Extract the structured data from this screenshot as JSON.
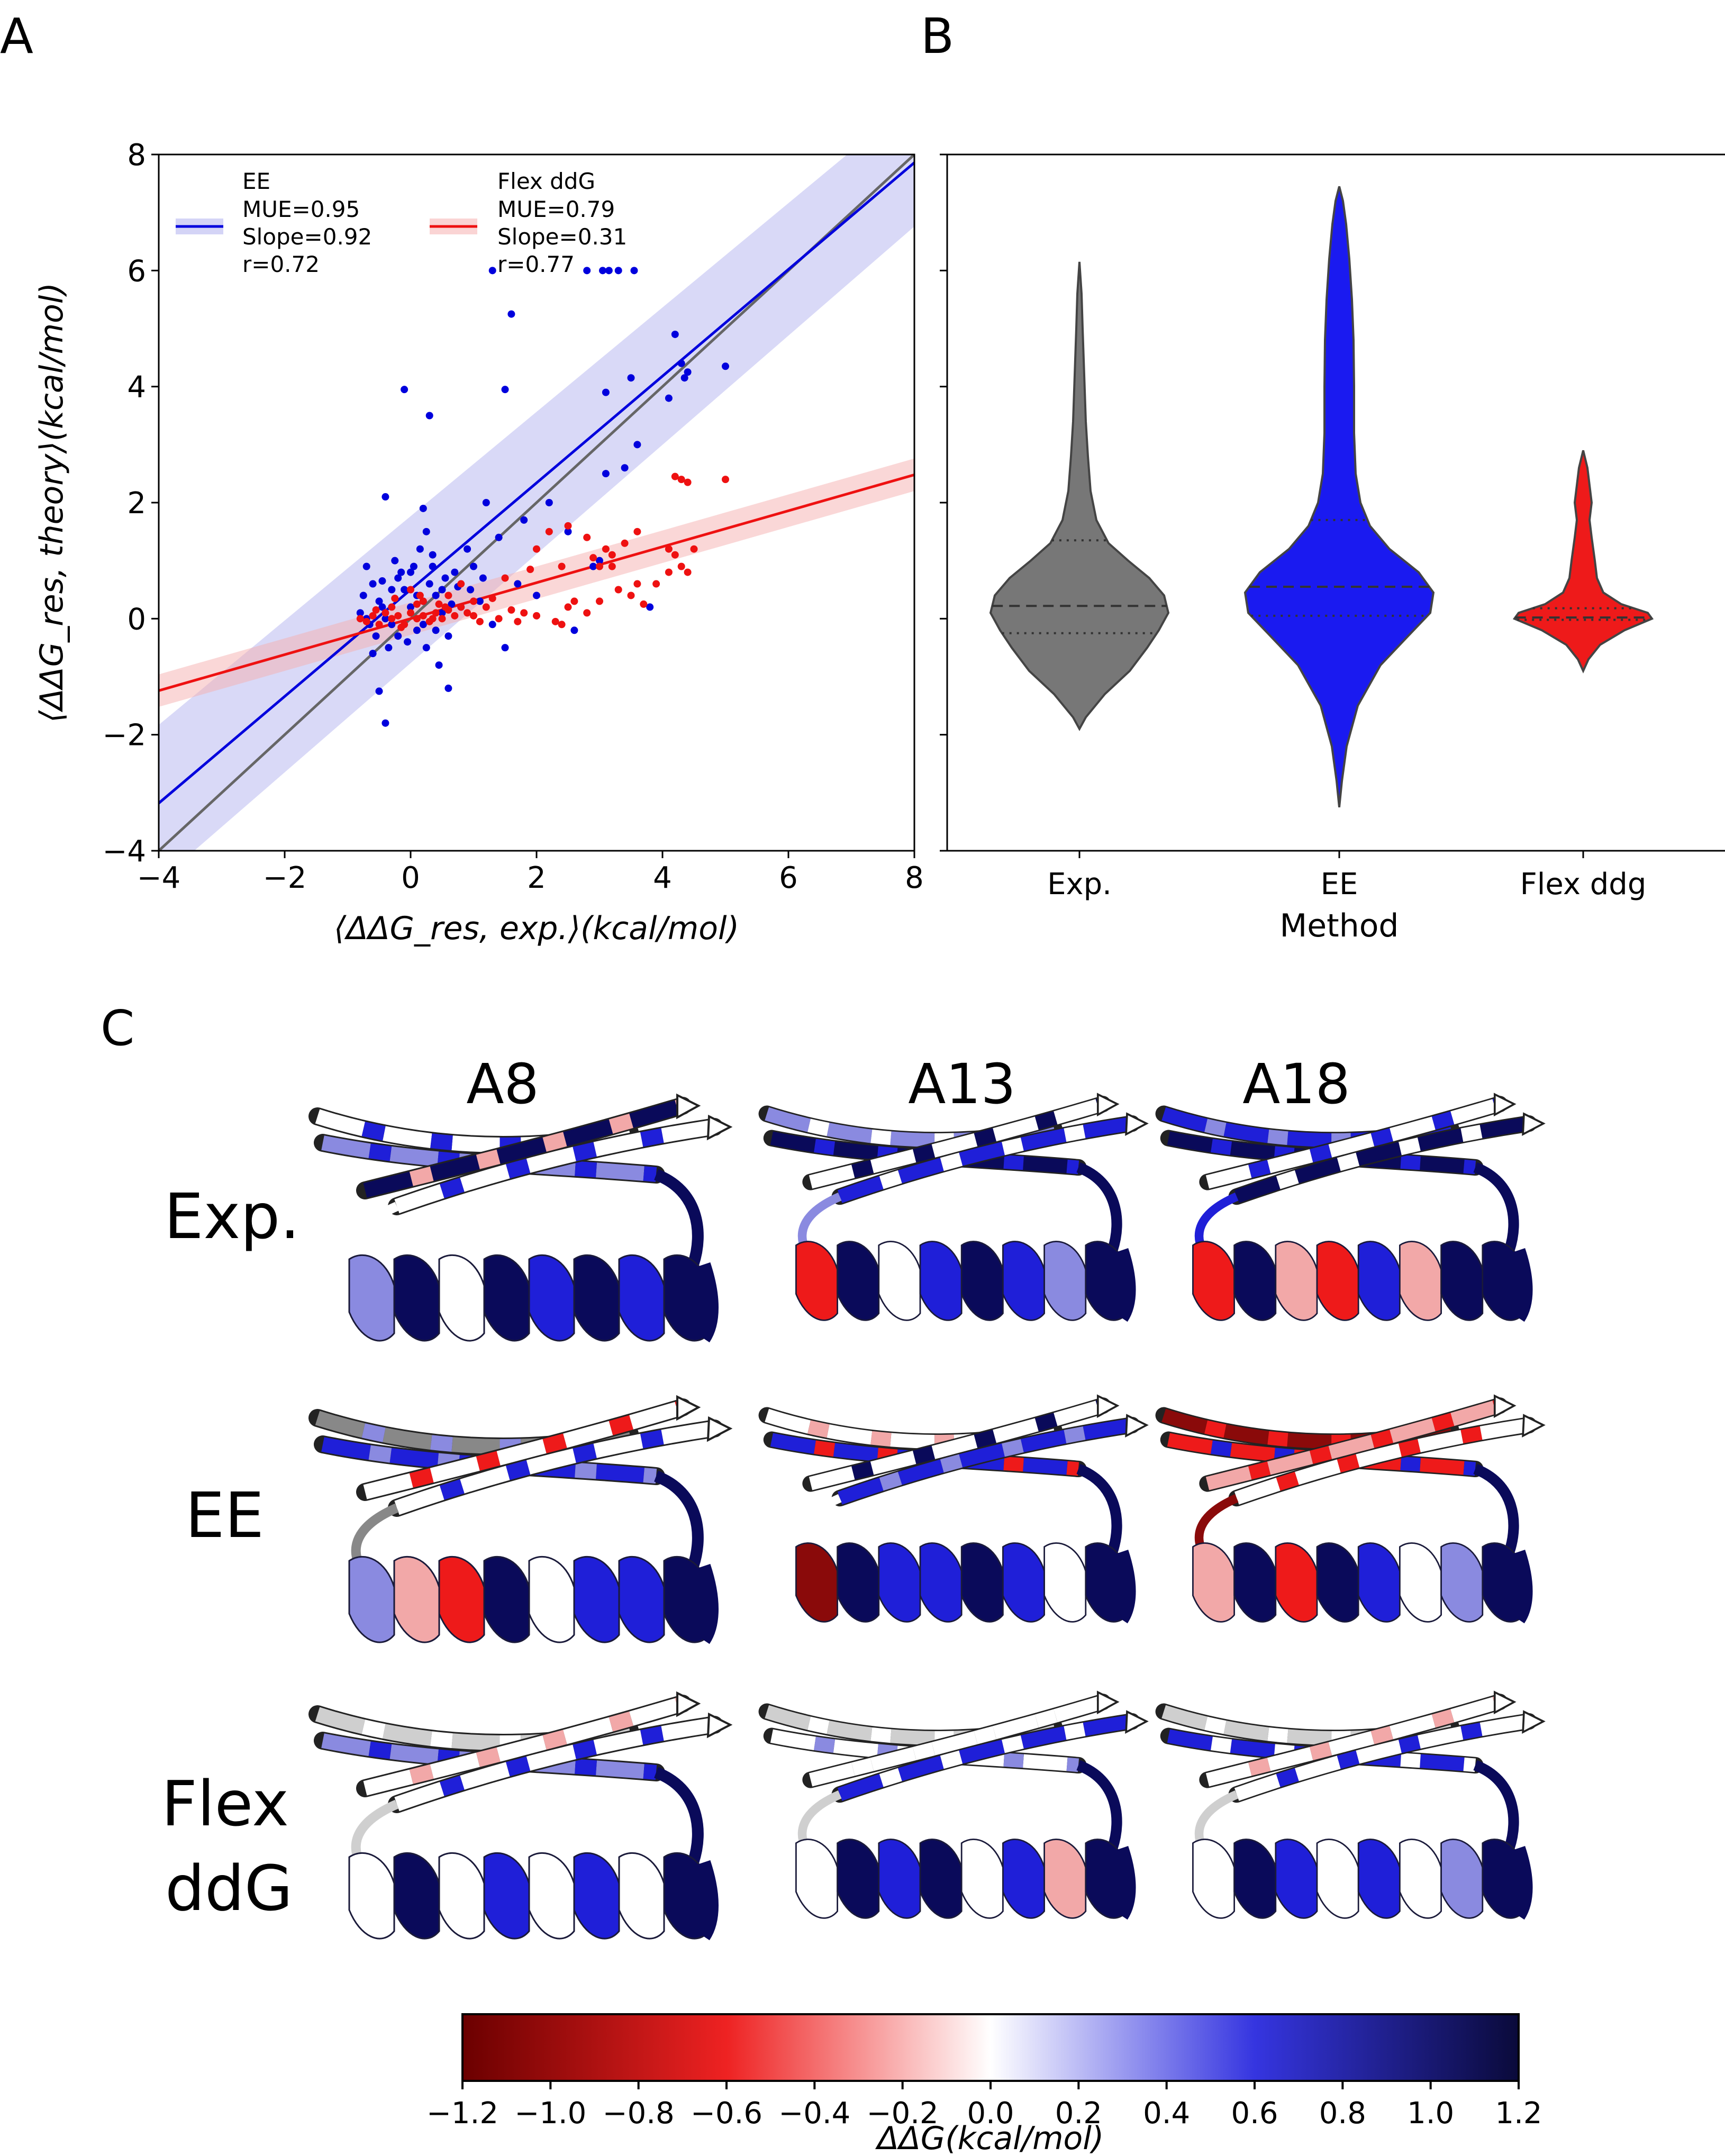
{
  "panels": {
    "a": "A",
    "b": "B",
    "c": "C"
  },
  "chart_data": [
    {
      "type": "scatter",
      "panel": "A",
      "xlabel": "⟨ΔΔG_res, exp.⟩(kcal/mol)",
      "ylabel": "⟨ΔΔG_res, theory⟩(kcal/mol)",
      "xlim": [
        -4,
        8
      ],
      "ylim": [
        -4,
        8
      ],
      "xticks": [
        "−4",
        "−2",
        "0",
        "2",
        "4",
        "6",
        "8"
      ],
      "yticks": [
        "−4",
        "−2",
        "0",
        "2",
        "4",
        "6",
        "8"
      ],
      "grid": false,
      "legend_position": "top-left",
      "reference_line": {
        "slope": 1,
        "intercept": 0,
        "color": "#666666"
      },
      "series": [
        {
          "name": "EE",
          "stats": [
            "MUE=0.95",
            "Slope=0.92",
            "r=0.72"
          ],
          "color": "#0000dd",
          "band_color": "#aaaaee",
          "fit": {
            "slope": 0.92,
            "intercept": 0.5
          },
          "points": [
            [
              -0.7,
              0.9
            ],
            [
              -0.6,
              0.6
            ],
            [
              -0.5,
              0.3
            ],
            [
              -0.4,
              0.0
            ],
            [
              -0.3,
              -0.1
            ],
            [
              -0.2,
              0.7
            ],
            [
              -0.1,
              0.5
            ],
            [
              0.0,
              0.2
            ],
            [
              0.1,
              -0.2
            ],
            [
              0.2,
              0.3
            ],
            [
              0.3,
              0.6
            ],
            [
              0.4,
              0.4
            ],
            [
              0.5,
              0.1
            ],
            [
              0.6,
              -0.3
            ],
            [
              0.7,
              0.8
            ],
            [
              -0.8,
              0.1
            ],
            [
              -0.75,
              0.4
            ],
            [
              -0.65,
              -0.1
            ],
            [
              -0.55,
              -0.3
            ],
            [
              -0.45,
              0.2
            ],
            [
              -0.35,
              -0.5
            ],
            [
              -0.25,
              1.0
            ],
            [
              -0.15,
              0.8
            ],
            [
              -0.05,
              -0.4
            ],
            [
              0.05,
              0.9
            ],
            [
              0.15,
              1.2
            ],
            [
              0.25,
              1.5
            ],
            [
              0.35,
              0.9
            ],
            [
              0.45,
              -0.8
            ],
            [
              0.55,
              0.7
            ],
            [
              -0.4,
              2.1
            ],
            [
              -0.1,
              3.95
            ],
            [
              0.3,
              3.5
            ],
            [
              0.2,
              1.9
            ],
            [
              0.6,
              -1.2
            ],
            [
              -0.5,
              -1.25
            ],
            [
              -0.4,
              -1.8
            ],
            [
              -0.6,
              -0.6
            ],
            [
              0.25,
              -0.5
            ],
            [
              0.4,
              -0.2
            ],
            [
              1.0,
              0.9
            ],
            [
              1.1,
              0.3
            ],
            [
              1.3,
              -0.1
            ],
            [
              1.5,
              -0.5
            ],
            [
              1.4,
              1.4
            ],
            [
              1.5,
              3.95
            ],
            [
              1.6,
              5.25
            ],
            [
              1.3,
              6.0
            ],
            [
              2.2,
              2.0
            ],
            [
              2.8,
              6.0
            ],
            [
              3.05,
              6.0
            ],
            [
              3.15,
              6.0
            ],
            [
              3.3,
              6.0
            ],
            [
              3.55,
              6.0
            ],
            [
              3.1,
              3.9
            ],
            [
              3.5,
              4.15
            ],
            [
              4.2,
              4.9
            ],
            [
              4.3,
              4.4
            ],
            [
              4.35,
              4.15
            ],
            [
              4.4,
              4.25
            ],
            [
              5.0,
              4.35
            ],
            [
              3.8,
              0.2
            ],
            [
              3.0,
              1.0
            ],
            [
              2.9,
              0.9
            ],
            [
              2.5,
              1.5
            ],
            [
              1.2,
              2.0
            ],
            [
              1.8,
              1.7
            ],
            [
              2.0,
              0.4
            ],
            [
              3.1,
              2.5
            ],
            [
              3.4,
              2.6
            ],
            [
              3.6,
              3.0
            ],
            [
              4.1,
              3.8
            ],
            [
              2.6,
              -0.2
            ],
            [
              1.7,
              0.6
            ],
            [
              0.9,
              1.2
            ],
            [
              0.8,
              0.2
            ],
            [
              -0.3,
              0.5
            ],
            [
              0.0,
              0.8
            ],
            [
              0.2,
              -0.1
            ],
            [
              -0.2,
              -0.3
            ],
            [
              0.1,
              0.4
            ],
            [
              0.35,
              1.1
            ],
            [
              0.5,
              0.5
            ],
            [
              -0.7,
              0.0
            ],
            [
              -0.45,
              0.65
            ],
            [
              0.65,
              0.25
            ],
            [
              0.75,
              0.55
            ],
            [
              0.95,
              0.5
            ],
            [
              1.15,
              0.7
            ]
          ]
        },
        {
          "name": "Flex ddG",
          "stats": [
            "MUE=0.79",
            "Slope=0.31",
            "r=0.77"
          ],
          "color": "#ee1111",
          "band_color": "#f5b0b0",
          "fit": {
            "slope": 0.31,
            "intercept": 0.0
          },
          "points": [
            [
              -0.8,
              0.0
            ],
            [
              -0.7,
              -0.05
            ],
            [
              -0.6,
              0.05
            ],
            [
              -0.5,
              -0.1
            ],
            [
              -0.4,
              0.1
            ],
            [
              -0.3,
              0.0
            ],
            [
              -0.2,
              0.05
            ],
            [
              -0.1,
              -0.1
            ],
            [
              0.0,
              0.1
            ],
            [
              0.1,
              0.0
            ],
            [
              0.2,
              0.05
            ],
            [
              0.3,
              -0.05
            ],
            [
              0.4,
              0.1
            ],
            [
              0.5,
              0.0
            ],
            [
              0.6,
              0.15
            ],
            [
              0.7,
              0.05
            ],
            [
              0.8,
              0.2
            ],
            [
              0.9,
              0.1
            ],
            [
              1.0,
              0.05
            ],
            [
              1.1,
              -0.05
            ],
            [
              0.0,
              0.5
            ],
            [
              0.2,
              0.3
            ],
            [
              -0.3,
              0.2
            ],
            [
              0.1,
              0.25
            ],
            [
              0.35,
              0.0
            ],
            [
              -0.15,
              -0.15
            ],
            [
              0.55,
              0.2
            ],
            [
              1.2,
              0.2
            ],
            [
              1.4,
              0.0
            ],
            [
              1.6,
              0.15
            ],
            [
              1.8,
              0.1
            ],
            [
              2.0,
              0.05
            ],
            [
              2.3,
              -0.05
            ],
            [
              2.5,
              0.2
            ],
            [
              2.6,
              0.3
            ],
            [
              2.8,
              0.1
            ],
            [
              3.0,
              0.3
            ],
            [
              3.3,
              0.5
            ],
            [
              3.5,
              0.4
            ],
            [
              3.6,
              0.6
            ],
            [
              3.9,
              0.6
            ],
            [
              4.1,
              0.8
            ],
            [
              4.2,
              1.1
            ],
            [
              4.3,
              0.9
            ],
            [
              4.4,
              0.8
            ],
            [
              3.0,
              0.9
            ],
            [
              3.1,
              1.2
            ],
            [
              3.2,
              1.1
            ],
            [
              3.4,
              1.3
            ],
            [
              3.6,
              1.5
            ],
            [
              2.2,
              1.5
            ],
            [
              2.5,
              1.6
            ],
            [
              2.8,
              1.4
            ],
            [
              2.0,
              1.2
            ],
            [
              1.9,
              0.85
            ],
            [
              2.9,
              1.05
            ],
            [
              4.2,
              2.45
            ],
            [
              4.3,
              2.4
            ],
            [
              4.4,
              2.35
            ],
            [
              5.0,
              2.4
            ],
            [
              4.5,
              1.2
            ],
            [
              4.1,
              1.2
            ],
            [
              3.2,
              0.9
            ],
            [
              2.4,
              0.9
            ],
            [
              1.5,
              0.7
            ],
            [
              1.3,
              0.35
            ],
            [
              1.0,
              0.3
            ],
            [
              0.6,
              0.4
            ],
            [
              0.8,
              0.6
            ],
            [
              -0.55,
              0.15
            ],
            [
              -0.25,
              0.35
            ],
            [
              0.15,
              0.4
            ],
            [
              0.45,
              0.25
            ],
            [
              2.4,
              -0.1
            ],
            [
              1.7,
              -0.05
            ],
            [
              3.7,
              0.25
            ]
          ]
        }
      ]
    },
    {
      "type": "violin",
      "panel": "B",
      "xlabel": "Method",
      "ylabel": "",
      "ylim": [
        -4,
        8
      ],
      "categories": [
        "Exp.",
        "EE",
        "Flex ddg"
      ],
      "series": [
        {
          "name": "Exp.",
          "color": "#777777",
          "min": -1.9,
          "max": 6.15,
          "q1": -0.25,
          "median": 0.22,
          "q3": 1.35
        },
        {
          "name": "EE",
          "color": "#1a1af0",
          "min": -3.25,
          "max": 7.45,
          "q1": 0.05,
          "median": 0.55,
          "q3": 1.7
        },
        {
          "name": "Flex ddg",
          "color": "#ee1a1a",
          "min": -0.9,
          "max": 2.9,
          "q1": -0.02,
          "median": 0.02,
          "q3": 0.18
        }
      ]
    }
  ],
  "panel_c": {
    "column_labels": [
      "A8",
      "A13",
      "A18"
    ],
    "row_labels": [
      [
        "Exp."
      ],
      [
        "EE"
      ],
      [
        "Flex",
        "ddG"
      ]
    ],
    "colorbar": {
      "label": "ΔΔG(kcal/mol)",
      "range": [
        -1.2,
        1.2
      ],
      "ticks": [
        "−1.2",
        "−1.0",
        "−0.8",
        "−0.6",
        "−0.4",
        "−0.2",
        "0.0",
        "0.2",
        "0.4",
        "0.6",
        "0.8",
        "1.0",
        "1.2"
      ],
      "colors": [
        "#6b0000",
        "#ee2222",
        "#ffffff",
        "#3535e0",
        "#0a0a3a"
      ]
    }
  }
}
